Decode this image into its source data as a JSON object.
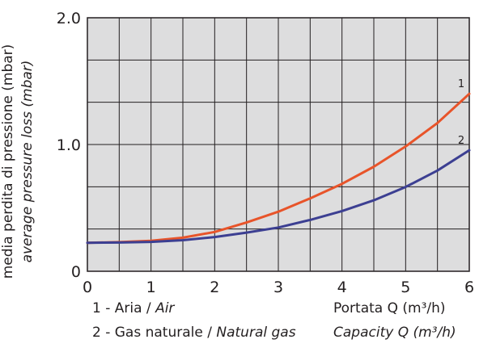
{
  "chart_data": {
    "type": "line",
    "ylabel_it": "media perdita di pressione (mbar)",
    "ylabel_en": "average pressure loss (mbar)",
    "xlabel_it": "Portata Q (m³/h)",
    "xlabel_en": "Capacity Q (m³/h)",
    "xlim": [
      0,
      6
    ],
    "ylim": [
      0,
      2.0
    ],
    "x_ticks": [
      "0",
      "1",
      "2",
      "3",
      "4",
      "5",
      "6"
    ],
    "y_ticks": [
      {
        "value": 0,
        "label": "0"
      },
      {
        "value": 1.0,
        "label": "1.0"
      },
      {
        "value": 2.0,
        "label": "2.0"
      }
    ],
    "grid": true,
    "series": [
      {
        "name": "1",
        "color": "#e8542a",
        "x": [
          0,
          0.5,
          1.0,
          1.5,
          2.0,
          2.5,
          3.0,
          3.5,
          4.0,
          4.5,
          5.0,
          5.5,
          6.0
        ],
        "y": [
          0.225,
          0.23,
          0.24,
          0.265,
          0.31,
          0.385,
          0.47,
          0.575,
          0.69,
          0.825,
          0.985,
          1.17,
          1.4
        ]
      },
      {
        "name": "2",
        "color": "#3c3f92",
        "x": [
          0,
          0.5,
          1.0,
          1.5,
          2.0,
          2.5,
          3.0,
          3.5,
          4.0,
          4.5,
          5.0,
          5.5,
          6.0
        ],
        "y": [
          0.225,
          0.227,
          0.232,
          0.245,
          0.27,
          0.305,
          0.345,
          0.405,
          0.475,
          0.56,
          0.665,
          0.795,
          0.955
        ]
      }
    ]
  },
  "legend": [
    {
      "num": "1 - Aria / ",
      "en": "Air"
    },
    {
      "num": "2 - Gas naturale / ",
      "en": "Natural gas"
    }
  ]
}
